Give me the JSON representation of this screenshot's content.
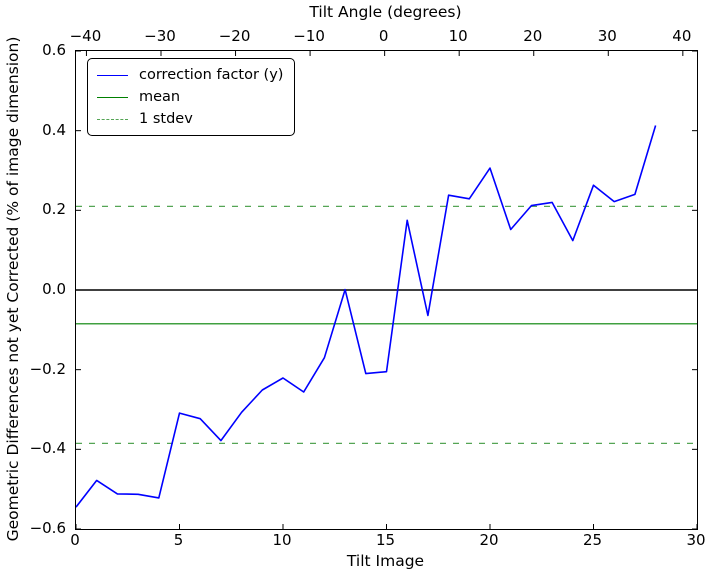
{
  "figure": {
    "top_axis_title": "Tilt Angle (degrees)",
    "bottom_axis_label": "Tilt Image",
    "y_axis_label": "Geometric Differences not yet Corrected (% of image dimension)"
  },
  "legend": {
    "entries": [
      {
        "label": "correction factor (y)",
        "color": "#0000ff",
        "style": "solid"
      },
      {
        "label": "mean",
        "color": "#008000",
        "style": "solid"
      },
      {
        "label": "1 stdev",
        "color": "#55a555",
        "style": "dashed"
      }
    ]
  },
  "chart_data": {
    "type": "line",
    "title": "Tilt Angle (degrees)",
    "xlabel": "Tilt Image",
    "ylabel": "Geometric Differences not yet Corrected (% of image dimension)",
    "xlim": [
      0,
      30
    ],
    "ylim": [
      -0.6,
      0.6
    ],
    "x_ticks": [
      0,
      5,
      10,
      15,
      20,
      25,
      30
    ],
    "y_ticks": [
      0.6,
      0.4,
      0.2,
      0.0,
      -0.2,
      -0.4,
      -0.6
    ],
    "grid": false,
    "legend_position": "upper left",
    "top_axis": {
      "label": "Tilt Angle (degrees)",
      "lim": [
        -41.4,
        41.9
      ],
      "ticks": [
        -40,
        -30,
        -20,
        -10,
        0,
        10,
        20,
        30,
        40
      ]
    },
    "zero_line": {
      "value": 0.0,
      "color": "#000000"
    },
    "series": [
      {
        "name": "correction factor (y)",
        "color": "#0000ff",
        "style": "solid",
        "x": [
          0,
          1,
          2,
          3,
          4,
          5,
          6,
          7,
          8,
          9,
          10,
          11,
          12,
          13,
          14,
          15,
          16,
          17,
          18,
          19,
          20,
          21,
          22,
          23,
          24,
          25,
          26,
          27,
          28
        ],
        "y": [
          -0.545,
          -0.478,
          -0.512,
          -0.513,
          -0.522,
          -0.309,
          -0.323,
          -0.378,
          -0.307,
          -0.251,
          -0.221,
          -0.256,
          -0.17,
          0.001,
          -0.21,
          -0.205,
          0.175,
          -0.064,
          0.238,
          0.229,
          0.306,
          0.152,
          0.212,
          0.22,
          0.124,
          0.263,
          0.222,
          0.24,
          0.413
        ]
      },
      {
        "name": "mean",
        "color": "#008000",
        "style": "solid",
        "value": -0.085
      },
      {
        "name": "1 stdev",
        "color": "#55a555",
        "style": "dashed",
        "values": [
          0.21,
          -0.385
        ]
      }
    ]
  }
}
